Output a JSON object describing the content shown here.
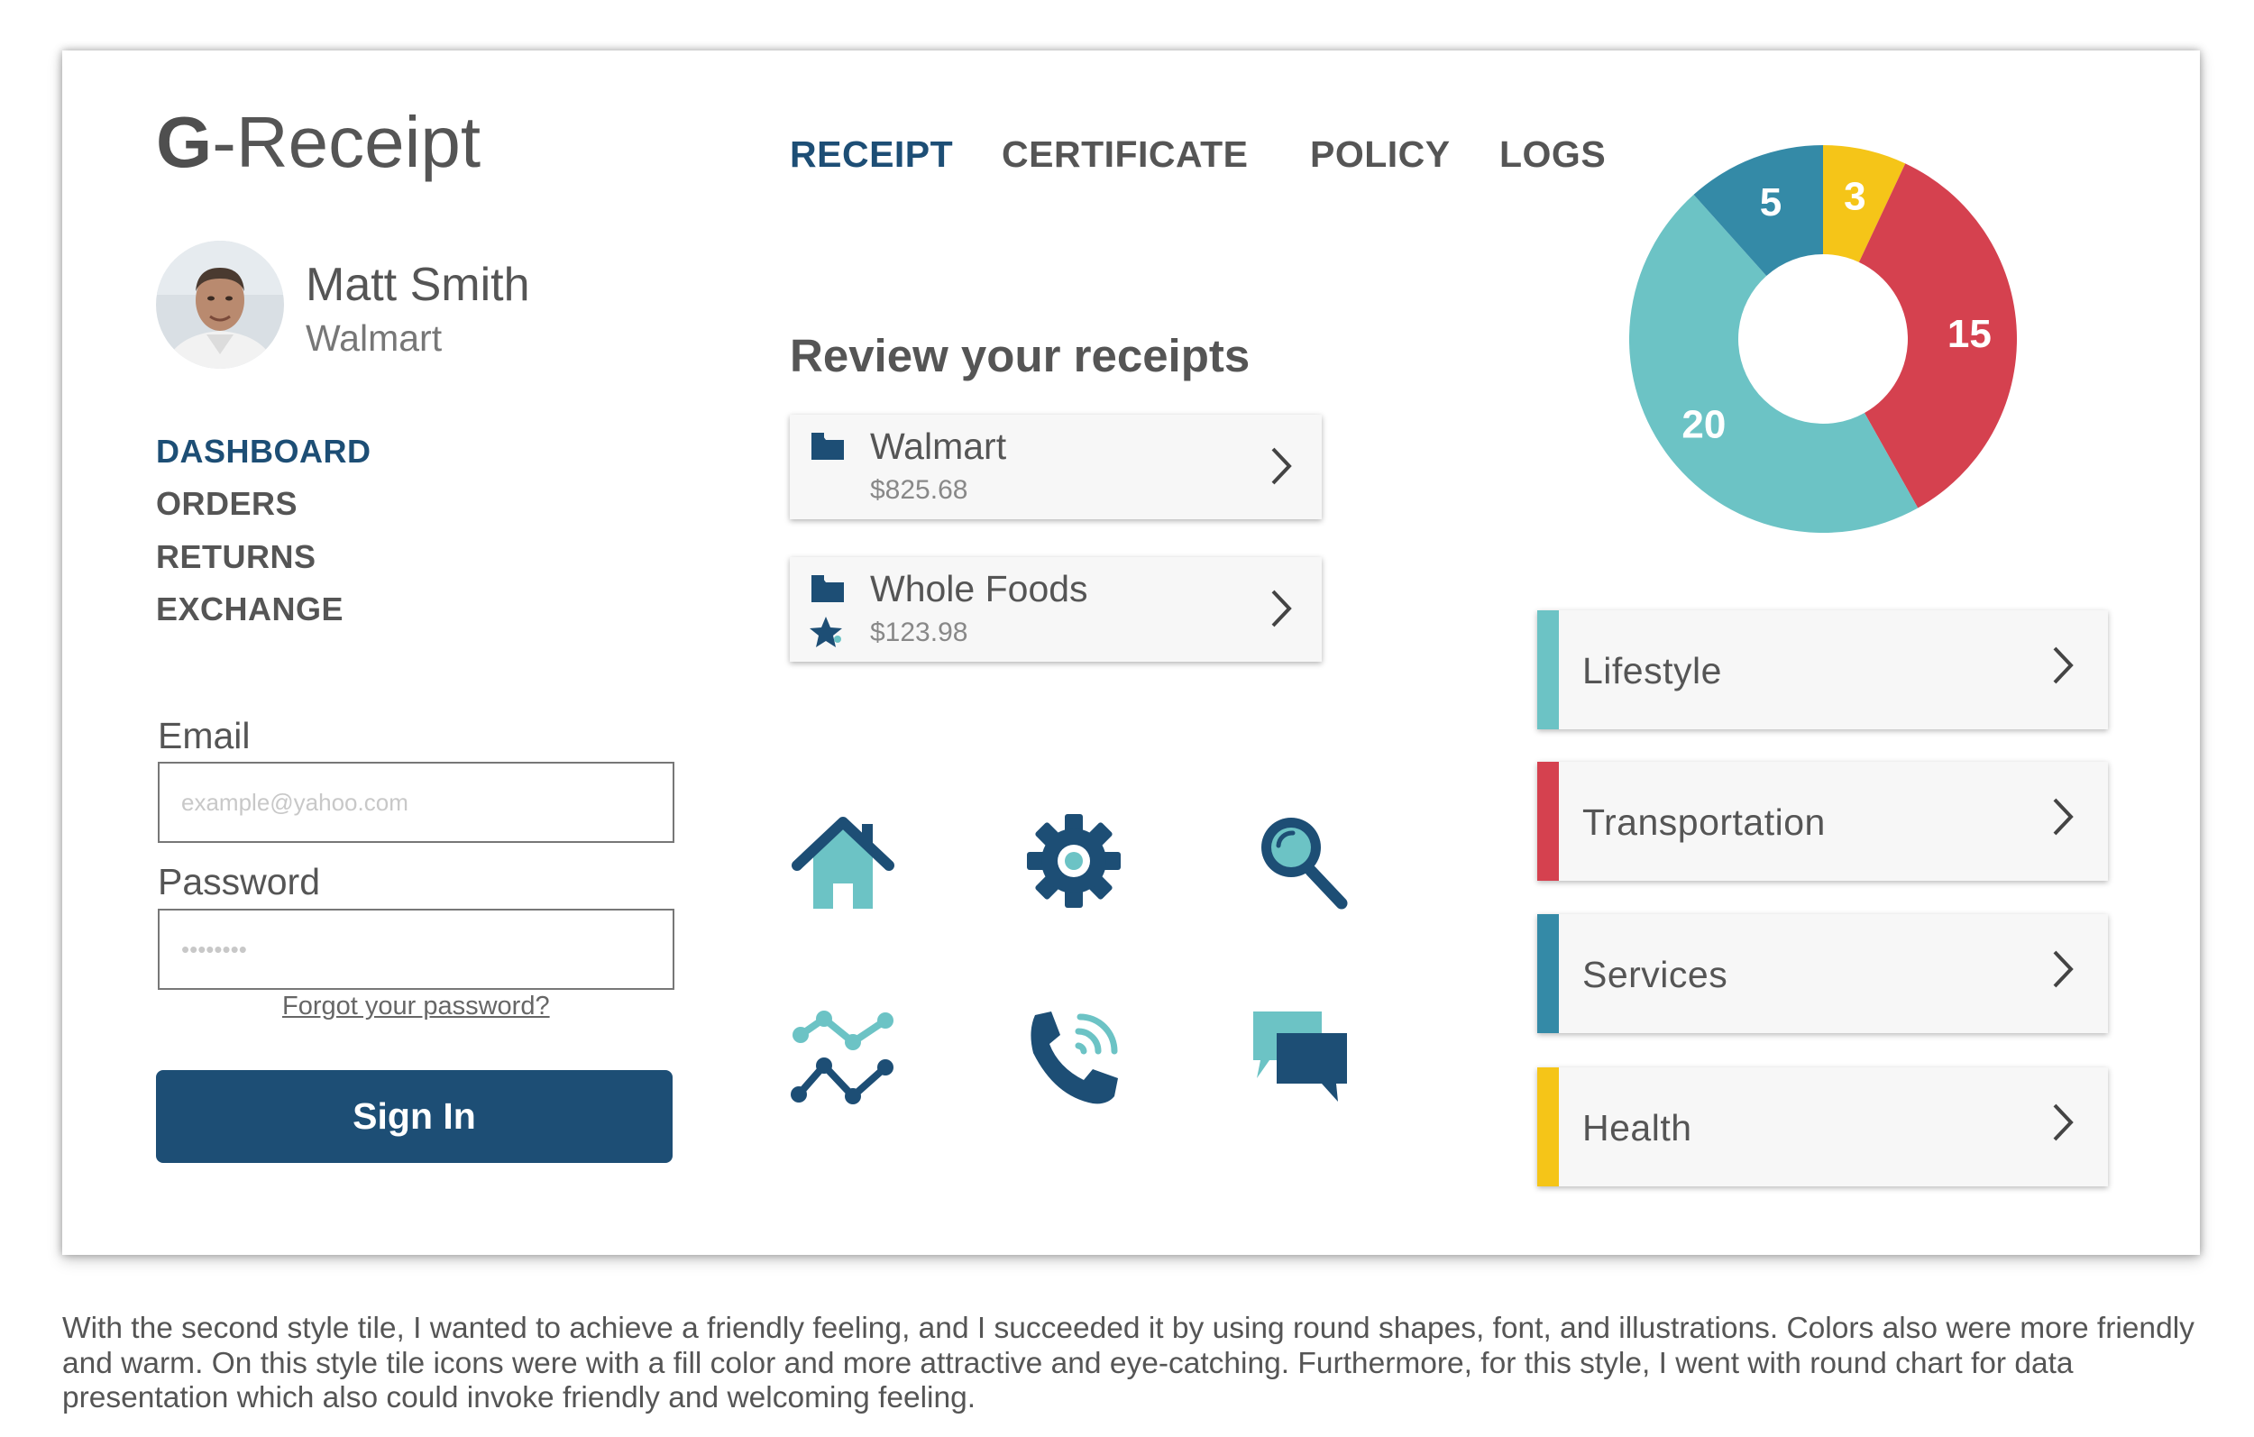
{
  "app": {
    "logo_bold": "G",
    "logo_rest": "-Receipt"
  },
  "user": {
    "name": "Matt Smith",
    "company": "Walmart"
  },
  "side_menu": [
    {
      "label": "DASHBOARD",
      "active": true
    },
    {
      "label": "ORDERS",
      "active": false
    },
    {
      "label": "RETURNS",
      "active": false
    },
    {
      "label": "EXCHANGE",
      "active": false
    }
  ],
  "login": {
    "email_label": "Email",
    "email_placeholder": "example@yahoo.com",
    "password_label": "Password",
    "password_placeholder": "••••••••",
    "forgot_label": "Forgot your password?",
    "signin_label": "Sign In"
  },
  "top_nav": [
    {
      "label": "RECEIPT",
      "active": true
    },
    {
      "label": "CERTIFICATE",
      "active": false
    },
    {
      "label": "POLICY",
      "active": false
    },
    {
      "label": "LOGS",
      "active": false
    }
  ],
  "receipts": {
    "title": "Review your receipts",
    "items": [
      {
        "store": "Walmart",
        "amount": "$825.68",
        "icons": [
          "folder-icon"
        ]
      },
      {
        "store": "Whole Foods",
        "amount": "$123.98",
        "icons": [
          "folder-icon",
          "star-icon"
        ]
      }
    ]
  },
  "icon_grid": [
    "home-icon",
    "gear-icon",
    "search-icon",
    "chart-line-icon",
    "phone-icon",
    "chat-icon"
  ],
  "chart_data": {
    "type": "pie",
    "style": "donut",
    "title": "",
    "slices": [
      {
        "value": 3,
        "label": "3",
        "color": "#f5c518"
      },
      {
        "value": 15,
        "label": "15",
        "color": "#d5414f"
      },
      {
        "value": 20,
        "label": "20",
        "color": "#6cc3c5"
      },
      {
        "value": 5,
        "label": "5",
        "color": "#348aa7"
      }
    ]
  },
  "categories": [
    {
      "label": "Lifestyle",
      "color": "#6cc3c5"
    },
    {
      "label": "Transportation",
      "color": "#d5414f"
    },
    {
      "label": "Services",
      "color": "#348aa7"
    },
    {
      "label": "Health",
      "color": "#f5c518"
    }
  ],
  "colors": {
    "primary": "#1d4e75",
    "teal": "#6cc3c5",
    "blue": "#348aa7",
    "red": "#d5414f",
    "yellow": "#f5c518"
  },
  "caption": "With the second style tile, I wanted to achieve a friendly feeling, and I succeeded it by using round shapes, font, and illustrations. Colors also were more friendly and warm. On this style tile icons were with a fill color and more attractive and eye-catching. Furthermore, for this style, I went with round chart for data presentation which also could invoke friendly and welcoming feeling."
}
